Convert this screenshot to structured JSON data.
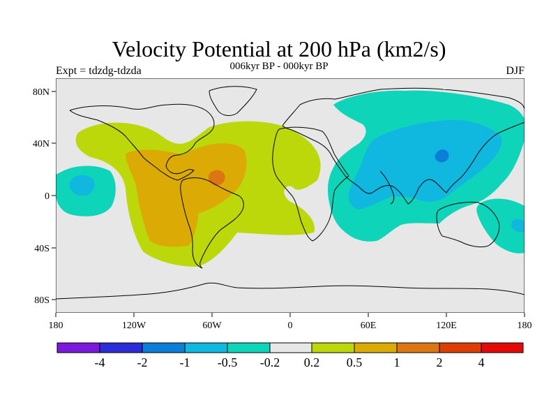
{
  "title": "Velocity Potential at 200 hPa (km2/s)",
  "subtitle": "006kyr BP - 000kyr BP",
  "experiment": "Expt = tdzdg-tdzda",
  "season": "DJF",
  "chart_data": {
    "type": "contour-map",
    "variable": "Velocity Potential at 200 hPa",
    "units": "km2/s",
    "projection": "cylindrical equidistant, 180W to 180E",
    "x_ticks": [
      "180",
      "120W",
      "60W",
      "0",
      "60E",
      "120E",
      "180"
    ],
    "y_ticks": [
      "80N",
      "40N",
      "0",
      "40S",
      "80S"
    ],
    "colorbar": {
      "colors": [
        "#7a18dc",
        "#2c2cd8",
        "#0c7ed8",
        "#10b8e0",
        "#0ed4ba",
        "#e7e7e7",
        "#bcd80a",
        "#dcaa04",
        "#dc7614",
        "#dc3e04",
        "#e40a0a"
      ],
      "labels": [
        "-4",
        "-2",
        "-1",
        "-0.5",
        "-0.2",
        "0.2",
        "0.5",
        "1",
        "2",
        "4"
      ]
    },
    "features": [
      {
        "region": "Americas and Atlantic",
        "sign": "positive",
        "peak_level": "2",
        "peak_location": "Caribbean, ~15N 55W"
      },
      {
        "region": "Asia, Indian Ocean, western Pacific",
        "sign": "negative",
        "peak_level": "-1",
        "peak_location": "East China, ~30N 118E"
      },
      {
        "region": "Central Pacific",
        "sign": "negative",
        "peak_level": "-0.5",
        "peak_location": "~10N 165W"
      },
      {
        "region": "Southwest Pacific near New Zealand",
        "sign": "negative",
        "peak_level": "-0.5",
        "peak_location": "~25S 170E"
      }
    ]
  }
}
